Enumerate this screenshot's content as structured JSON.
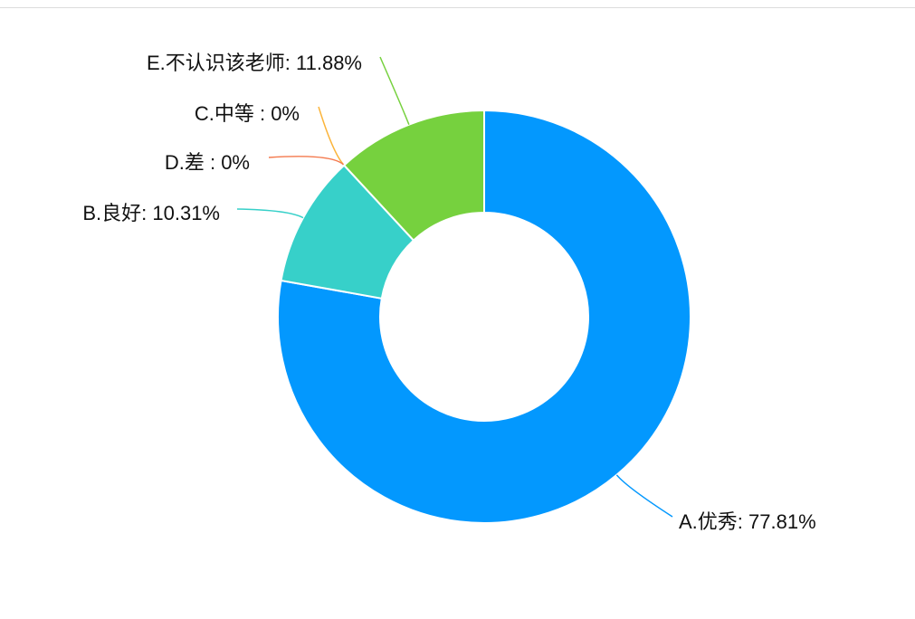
{
  "chart_data": {
    "type": "pie",
    "values": [
      77.81,
      10.31,
      0,
      0,
      11.88
    ],
    "value_labels": [
      "A.优秀: 77.81%",
      "B.良好: 10.31%",
      "C.中等 : 0%",
      "D.差 : 0%",
      "E.不认识该老师: 11.88%"
    ],
    "colors": [
      "#0398fe",
      "#37d0c9",
      "#fbb43a",
      "#f47a4e",
      "#76d13e"
    ]
  }
}
